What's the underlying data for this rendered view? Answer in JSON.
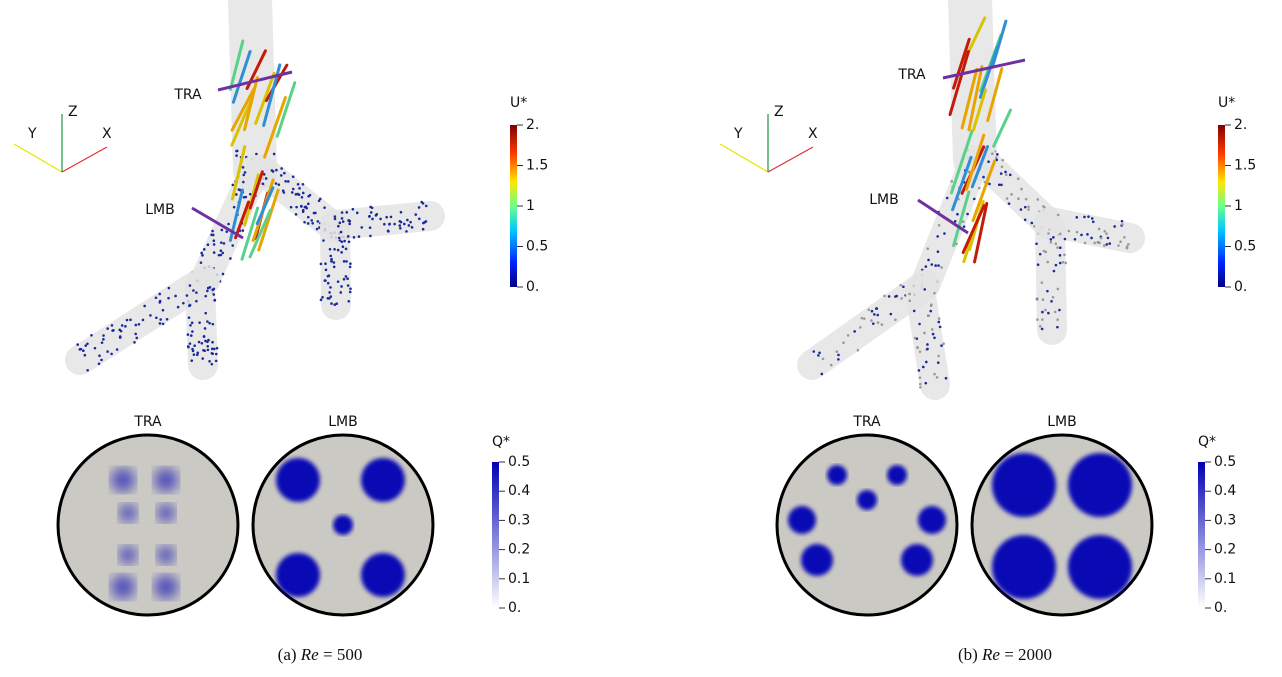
{
  "panels": [
    {
      "markers": [
        "TRA",
        "LMB"
      ],
      "axes": [
        "Y",
        "Z",
        "X"
      ],
      "u_colorbar": {
        "title": "U*",
        "ticks": [
          "2.",
          "1.5",
          "1",
          "0.5",
          "0."
        ]
      },
      "section_titles": [
        "TRA",
        "LMB"
      ],
      "q_colorbar": {
        "title": "Q*",
        "ticks": [
          "0.5",
          "0.4",
          "0.3",
          "0.2",
          "0.1",
          "0."
        ]
      },
      "caption": {
        "prefix": "(a)",
        "symbol": "Re",
        "rest": "= 500"
      }
    },
    {
      "markers": [
        "TRA",
        "LMB"
      ],
      "axes": [
        "Y",
        "Z",
        "X"
      ],
      "u_colorbar": {
        "title": "U*",
        "ticks": [
          "2.",
          "1.5",
          "1",
          "0.5",
          "0."
        ]
      },
      "section_titles": [
        "TRA",
        "LMB"
      ],
      "q_colorbar": {
        "title": "Q*",
        "ticks": [
          "0.5",
          "0.4",
          "0.3",
          "0.2",
          "0.1",
          "0."
        ]
      },
      "caption": {
        "prefix": "(b)",
        "symbol": "Re",
        "rest": "= 2000"
      }
    }
  ]
}
